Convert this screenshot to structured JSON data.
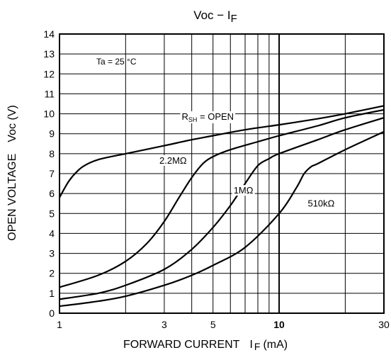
{
  "chart_data": {
    "type": "line",
    "title": "Voc − I",
    "title_subscript": "F",
    "xlabel": "FORWARD CURRENT",
    "xlabel_symbol": "I",
    "xlabel_subscript": "F",
    "xlabel_unit": "(mA)",
    "ylabel": "OPEN VOLTAGE",
    "ylabel_unit": "Voc (V)",
    "x_scale": "log",
    "xlim": [
      1,
      30
    ],
    "ylim": [
      0,
      14
    ],
    "x_ticks": [
      {
        "value": 1,
        "label": "1"
      },
      {
        "value": 3,
        "label": "3"
      },
      {
        "value": 5,
        "label": "5"
      },
      {
        "value": 10,
        "label": "10"
      },
      {
        "value": 30,
        "label": "30"
      }
    ],
    "y_ticks": [
      "0",
      "1",
      "2",
      "3",
      "4",
      "5",
      "6",
      "7",
      "8",
      "9",
      "10",
      "11",
      "12",
      "13",
      "14"
    ],
    "grid": true,
    "condition": "Ta = 25 °C",
    "series": [
      {
        "name_main": "R",
        "name_sub": "SH",
        "name_rest": " = OPEN",
        "points": [
          [
            1,
            5.8
          ],
          [
            1.1,
            6.6
          ],
          [
            1.2,
            7.1
          ],
          [
            1.3,
            7.4
          ],
          [
            1.5,
            7.7
          ],
          [
            2,
            8.0
          ],
          [
            3,
            8.4
          ],
          [
            4,
            8.7
          ],
          [
            5,
            8.9
          ],
          [
            7,
            9.2
          ],
          [
            10,
            9.45
          ],
          [
            15,
            9.75
          ],
          [
            20,
            10.0
          ],
          [
            30,
            10.4
          ]
        ]
      },
      {
        "name": "2.2MΩ",
        "points": [
          [
            1,
            1.3
          ],
          [
            1.5,
            1.9
          ],
          [
            2,
            2.6
          ],
          [
            2.5,
            3.5
          ],
          [
            3,
            4.6
          ],
          [
            3.5,
            5.8
          ],
          [
            4,
            6.8
          ],
          [
            4.5,
            7.5
          ],
          [
            5,
            7.85
          ],
          [
            6,
            8.2
          ],
          [
            8,
            8.6
          ],
          [
            10,
            8.9
          ],
          [
            15,
            9.4
          ],
          [
            20,
            9.8
          ],
          [
            30,
            10.2
          ]
        ]
      },
      {
        "name": "1MΩ",
        "points": [
          [
            1,
            0.7
          ],
          [
            1.5,
            1.0
          ],
          [
            2,
            1.4
          ],
          [
            3,
            2.2
          ],
          [
            4,
            3.2
          ],
          [
            5,
            4.3
          ],
          [
            6,
            5.4
          ],
          [
            7,
            6.5
          ],
          [
            8,
            7.4
          ],
          [
            9,
            7.75
          ],
          [
            10,
            8.0
          ],
          [
            15,
            8.7
          ],
          [
            20,
            9.2
          ],
          [
            30,
            9.8
          ]
        ]
      },
      {
        "name": "510kΩ",
        "points": [
          [
            1,
            0.35
          ],
          [
            1.5,
            0.6
          ],
          [
            2,
            0.85
          ],
          [
            3,
            1.4
          ],
          [
            4,
            1.9
          ],
          [
            5,
            2.4
          ],
          [
            7,
            3.3
          ],
          [
            10,
            5.0
          ],
          [
            12,
            6.3
          ],
          [
            13,
            7.0
          ],
          [
            14,
            7.35
          ],
          [
            15,
            7.5
          ],
          [
            20,
            8.2
          ],
          [
            30,
            9.1
          ]
        ]
      }
    ],
    "curve_label_anchors": [
      {
        "series": 0,
        "x": 3.6,
        "y": 9.7
      },
      {
        "series": 1,
        "x": 2.85,
        "y": 7.5
      },
      {
        "series": 2,
        "x": 6.2,
        "y": 6.0
      },
      {
        "series": 3,
        "x": 13.5,
        "y": 5.35
      }
    ],
    "line_color": "#000000",
    "background": "#ffffff"
  }
}
